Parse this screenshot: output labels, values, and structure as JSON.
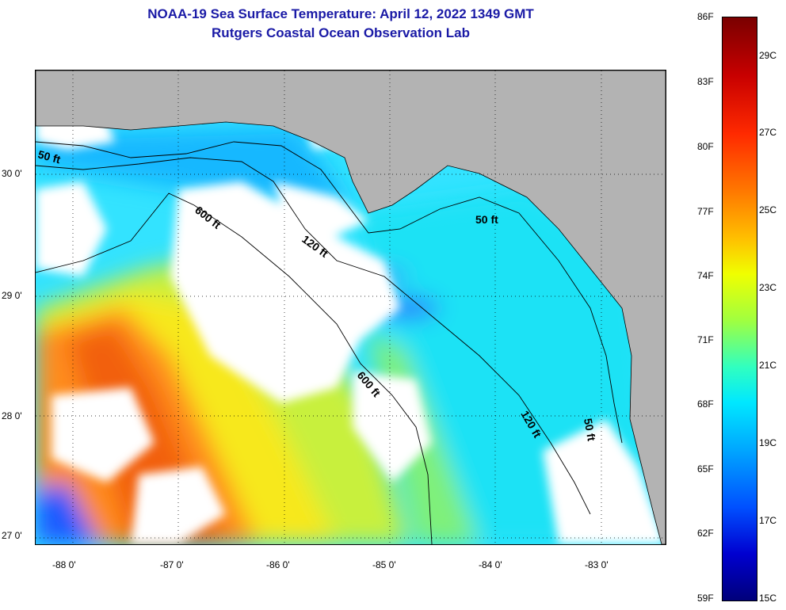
{
  "header": {
    "title_line1": "NOAA-19 Sea Surface Temperature:  April 12, 2022 1349 GMT",
    "title_line2": "Rutgers Coastal Ocean Observation Lab"
  },
  "map": {
    "x_ticks": [
      "-88 0'",
      "-87 0'",
      "-86 0'",
      "-85 0'",
      "-84 0'",
      "-83 0'"
    ],
    "y_ticks": [
      "30 0'",
      "29 0'",
      "28 0'",
      "27 0'"
    ],
    "contours": {
      "west_50": "50 ft",
      "east_50": "50 ft",
      "nw_120": "120 ft",
      "se_120": "120 ft",
      "nw_600": "600 ft",
      "mid_600": "600 ft",
      "se_50": "50 ft"
    },
    "colors": {
      "land": "#b3b3b3",
      "cloud": "#ffffff",
      "grid": "#000000"
    }
  },
  "colorbar": {
    "fahrenheit_labels": [
      "86F",
      "83F",
      "80F",
      "77F",
      "74F",
      "71F",
      "68F",
      "65F",
      "62F",
      "59F"
    ],
    "celsius_labels": [
      "29C",
      "27C",
      "25C",
      "23C",
      "21C",
      "19C",
      "17C",
      "15C"
    ]
  }
}
